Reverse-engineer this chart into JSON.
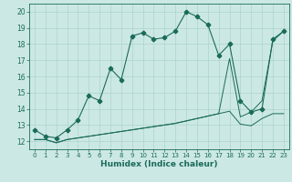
{
  "title": "",
  "xlabel": "Humidex (Indice chaleur)",
  "ylabel": "",
  "xlim": [
    -0.5,
    23.5
  ],
  "ylim": [
    11.5,
    20.5
  ],
  "xticks": [
    0,
    1,
    2,
    3,
    4,
    5,
    6,
    7,
    8,
    9,
    10,
    11,
    12,
    13,
    14,
    15,
    16,
    17,
    18,
    19,
    20,
    21,
    22,
    23
  ],
  "yticks": [
    12,
    13,
    14,
    15,
    16,
    17,
    18,
    19,
    20
  ],
  "bg_color": "#cce8e4",
  "line_color": "#1a6b5a",
  "grid_color": "#aad4cc",
  "series1_x": [
    0,
    1,
    2,
    3,
    4,
    5,
    6,
    7,
    8,
    9,
    10,
    11,
    12,
    13,
    14,
    15,
    16,
    17,
    18,
    19,
    20,
    21,
    22,
    23
  ],
  "series1_y": [
    12.7,
    12.3,
    12.2,
    12.7,
    13.3,
    14.8,
    14.5,
    16.5,
    15.8,
    18.5,
    18.7,
    18.3,
    18.4,
    18.8,
    20.0,
    19.7,
    19.2,
    17.3,
    18.0,
    14.5,
    13.8,
    14.0,
    18.3,
    18.8
  ],
  "series2_x": [
    0,
    1,
    2,
    3,
    4,
    5,
    6,
    7,
    8,
    9,
    10,
    11,
    12,
    13,
    14,
    15,
    16,
    17,
    18,
    19,
    20,
    21,
    22,
    23
  ],
  "series2_y": [
    12.1,
    12.1,
    11.9,
    12.1,
    12.2,
    12.3,
    12.4,
    12.5,
    12.6,
    12.7,
    12.8,
    12.9,
    13.0,
    13.1,
    13.25,
    13.4,
    13.55,
    13.7,
    13.85,
    13.05,
    12.95,
    13.4,
    13.7,
    13.7
  ],
  "series3_x": [
    0,
    1,
    2,
    3,
    4,
    5,
    6,
    7,
    8,
    9,
    10,
    11,
    12,
    13,
    14,
    15,
    16,
    17,
    18,
    19,
    20,
    21,
    22,
    23
  ],
  "series3_y": [
    12.1,
    12.1,
    11.9,
    12.1,
    12.2,
    12.3,
    12.4,
    12.5,
    12.6,
    12.7,
    12.8,
    12.9,
    13.0,
    13.1,
    13.25,
    13.4,
    13.55,
    13.7,
    17.1,
    13.5,
    13.8,
    14.5,
    18.2,
    18.8
  ],
  "marker": "P",
  "markersize": 3.0,
  "lw1": 0.8,
  "lw2": 0.7,
  "lw3": 0.7
}
